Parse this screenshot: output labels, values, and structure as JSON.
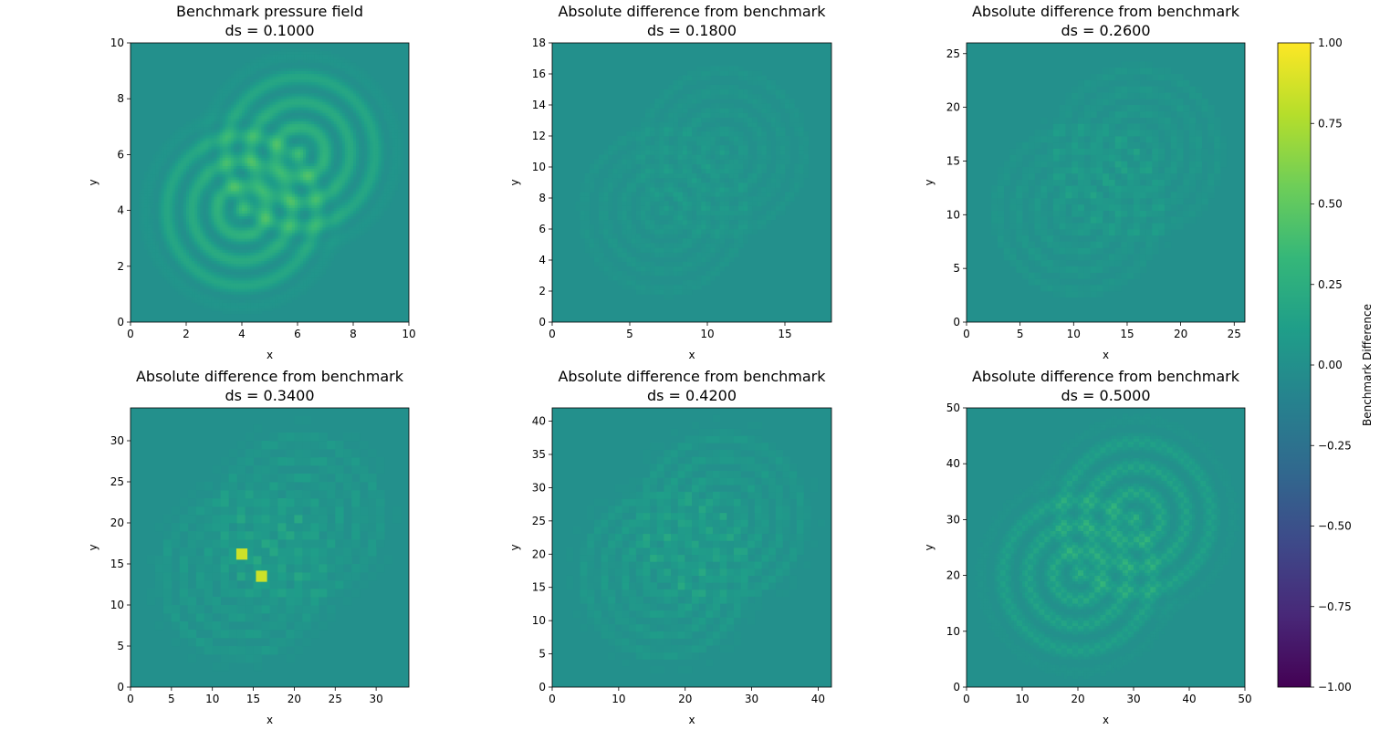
{
  "chart_data": [
    {
      "type": "heatmap",
      "title": "Benchmark pressure field",
      "subtitle": "ds = 0.1000",
      "xlabel": "x",
      "ylabel": "y",
      "xlim": [
        0,
        10
      ],
      "ylim": [
        0,
        10
      ],
      "xticks": [
        "0",
        "2",
        "4",
        "6",
        "8",
        "10"
      ],
      "yticks": [
        "0",
        "2",
        "4",
        "6",
        "8",
        "10"
      ],
      "field": {
        "sources": [
          [
            4,
            4
          ],
          [
            6.1,
            6.1
          ]
        ],
        "inner_radius": 2.0,
        "outer_radius": 3.3,
        "ring_spacing": 0.9,
        "amplitude": 0.3,
        "grid_cells": 100
      }
    },
    {
      "type": "heatmap",
      "title": "Absolute difference from benchmark",
      "subtitle": "ds = 0.1800",
      "xlabel": "x",
      "ylabel": "y",
      "xlim": [
        0,
        18
      ],
      "ylim": [
        0,
        18
      ],
      "xticks": [
        "0",
        "5",
        "10",
        "15"
      ],
      "yticks": [
        "0",
        "2",
        "4",
        "6",
        "8",
        "10",
        "12",
        "14",
        "16",
        "18"
      ],
      "field": {
        "sources": [
          [
            7.2,
            7.2
          ],
          [
            11.0,
            11.0
          ]
        ],
        "inner_radius": 3.6,
        "outer_radius": 5.9,
        "ring_spacing": 1.3,
        "amplitude": 0.08,
        "grid_cells": 60
      }
    },
    {
      "type": "heatmap",
      "title": "Absolute difference from benchmark",
      "subtitle": "ds = 0.2600",
      "xlabel": "x",
      "ylabel": "y",
      "xlim": [
        0,
        26
      ],
      "ylim": [
        0,
        26
      ],
      "xticks": [
        "0",
        "5",
        "10",
        "15",
        "20",
        "25"
      ],
      "yticks": [
        "0",
        "5",
        "10",
        "15",
        "20",
        "25"
      ],
      "field": {
        "sources": [
          [
            10.4,
            10.4
          ],
          [
            15.9,
            15.9
          ]
        ],
        "inner_radius": 5.2,
        "outer_radius": 8.6,
        "ring_spacing": 1.9,
        "amplitude": 0.1,
        "grid_cells": 45
      }
    },
    {
      "type": "heatmap",
      "title": "Absolute difference from benchmark",
      "subtitle": "ds = 0.3400",
      "xlabel": "x",
      "ylabel": "y",
      "xlim": [
        0,
        34
      ],
      "ylim": [
        0,
        34
      ],
      "xticks": [
        "0",
        "5",
        "10",
        "15",
        "20",
        "25",
        "30"
      ],
      "yticks": [
        "0",
        "5",
        "10",
        "15",
        "20",
        "25",
        "30"
      ],
      "field": {
        "sources": [
          [
            13.6,
            13.6
          ],
          [
            20.7,
            20.7
          ]
        ],
        "inner_radius": 6.8,
        "outer_radius": 11.2,
        "ring_spacing": 2.4,
        "amplitude": 0.14,
        "grid_cells": 34
      },
      "hotspots": [
        {
          "x": 13.6,
          "y": 16.2,
          "value": 0.85
        },
        {
          "x": 16.0,
          "y": 13.5,
          "value": 0.85
        }
      ]
    },
    {
      "type": "heatmap",
      "title": "Absolute difference from benchmark",
      "subtitle": "ds = 0.4200",
      "xlabel": "x",
      "ylabel": "y",
      "xlim": [
        0,
        42
      ],
      "ylim": [
        0,
        42
      ],
      "xticks": [
        "0",
        "10",
        "20",
        "30",
        "40"
      ],
      "yticks": [
        "0",
        "5",
        "10",
        "15",
        "20",
        "25",
        "30",
        "35",
        "40"
      ],
      "field": {
        "sources": [
          [
            16.8,
            16.8
          ],
          [
            25.6,
            25.6
          ]
        ],
        "inner_radius": 8.4,
        "outer_radius": 13.9,
        "ring_spacing": 3.0,
        "amplitude": 0.14,
        "grid_cells": 40
      }
    },
    {
      "type": "heatmap",
      "title": "Absolute difference from benchmark",
      "subtitle": "ds = 0.5000",
      "xlabel": "x",
      "ylabel": "y",
      "xlim": [
        0,
        50
      ],
      "ylim": [
        0,
        50
      ],
      "xticks": [
        "0",
        "10",
        "20",
        "30",
        "40",
        "50"
      ],
      "yticks": [
        "0",
        "10",
        "20",
        "30",
        "40",
        "50"
      ],
      "field": {
        "sources": [
          [
            20,
            20
          ],
          [
            30.5,
            30.5
          ]
        ],
        "inner_radius": 10,
        "outer_radius": 16.5,
        "ring_spacing": 4.5,
        "amplitude": 0.22,
        "grid_cells": 100
      }
    }
  ],
  "colorbar": {
    "label": "Benchmark Difference",
    "range": [
      -1.0,
      1.0
    ],
    "ticks": [
      "1.00",
      "0.75",
      "0.50",
      "0.25",
      "0.00",
      "−0.25",
      "−0.50",
      "−0.75",
      "−1.00"
    ],
    "tick_values": [
      1.0,
      0.75,
      0.5,
      0.25,
      0.0,
      -0.25,
      -0.5,
      -0.75,
      -1.0
    ],
    "colormap": "viridis",
    "colormap_stops": [
      "#440154",
      "#482878",
      "#3e4989",
      "#31688e",
      "#26828e",
      "#1f9e89",
      "#35b779",
      "#6ece58",
      "#b5de2b",
      "#fde725"
    ]
  }
}
